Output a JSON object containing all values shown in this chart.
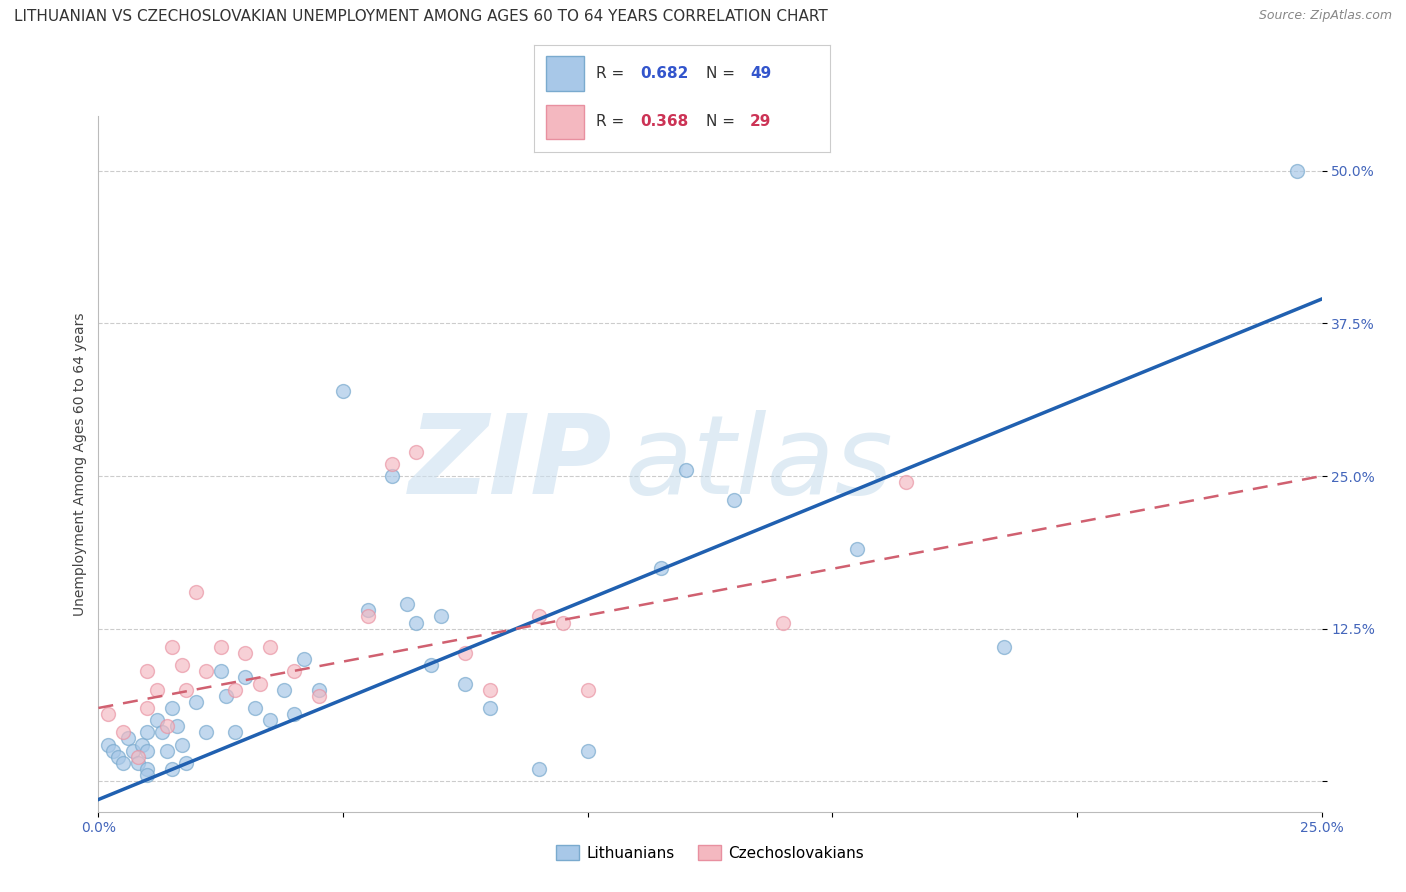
{
  "title": "LITHUANIAN VS CZECHOSLOVAKIAN UNEMPLOYMENT AMONG AGES 60 TO 64 YEARS CORRELATION CHART",
  "source": "Source: ZipAtlas.com",
  "ylabel": "Unemployment Among Ages 60 to 64 years",
  "xlim": [
    0.0,
    0.25
  ],
  "ylim": [
    -0.025,
    0.545
  ],
  "xticks": [
    0.0,
    0.05,
    0.1,
    0.15,
    0.2,
    0.25
  ],
  "xticklabels": [
    "0.0%",
    "",
    "",
    "",
    "",
    "25.0%"
  ],
  "yticks": [
    0.0,
    0.125,
    0.25,
    0.375,
    0.5
  ],
  "yticklabels": [
    "",
    "12.5%",
    "25.0%",
    "37.5%",
    "50.0%"
  ],
  "blue_R": "0.682",
  "blue_N": "49",
  "pink_R": "0.368",
  "pink_N": "29",
  "blue_color": "#a8c8e8",
  "pink_color": "#f4b8c0",
  "blue_edge_color": "#7aaace",
  "pink_edge_color": "#e890a0",
  "blue_line_color": "#2060b0",
  "pink_line_color": "#d06070",
  "grid_color": "#cccccc",
  "legend_labels": [
    "Lithuanians",
    "Czechoslovakians"
  ],
  "blue_scatter_x": [
    0.002,
    0.003,
    0.004,
    0.005,
    0.006,
    0.007,
    0.008,
    0.009,
    0.01,
    0.01,
    0.01,
    0.01,
    0.012,
    0.013,
    0.014,
    0.015,
    0.015,
    0.016,
    0.017,
    0.018,
    0.02,
    0.022,
    0.025,
    0.026,
    0.028,
    0.03,
    0.032,
    0.035,
    0.038,
    0.04,
    0.042,
    0.045,
    0.05,
    0.055,
    0.06,
    0.063,
    0.065,
    0.068,
    0.07,
    0.075,
    0.08,
    0.09,
    0.1,
    0.115,
    0.12,
    0.13,
    0.155,
    0.185,
    0.245
  ],
  "blue_scatter_y": [
    0.03,
    0.025,
    0.02,
    0.015,
    0.035,
    0.025,
    0.015,
    0.03,
    0.04,
    0.01,
    0.025,
    0.005,
    0.05,
    0.04,
    0.025,
    0.06,
    0.01,
    0.045,
    0.03,
    0.015,
    0.065,
    0.04,
    0.09,
    0.07,
    0.04,
    0.085,
    0.06,
    0.05,
    0.075,
    0.055,
    0.1,
    0.075,
    0.32,
    0.14,
    0.25,
    0.145,
    0.13,
    0.095,
    0.135,
    0.08,
    0.06,
    0.01,
    0.025,
    0.175,
    0.255,
    0.23,
    0.19,
    0.11,
    0.5
  ],
  "pink_scatter_x": [
    0.002,
    0.005,
    0.008,
    0.01,
    0.01,
    0.012,
    0.014,
    0.015,
    0.017,
    0.018,
    0.02,
    0.022,
    0.025,
    0.028,
    0.03,
    0.033,
    0.035,
    0.04,
    0.045,
    0.055,
    0.06,
    0.065,
    0.075,
    0.08,
    0.09,
    0.095,
    0.1,
    0.14,
    0.165
  ],
  "pink_scatter_y": [
    0.055,
    0.04,
    0.02,
    0.09,
    0.06,
    0.075,
    0.045,
    0.11,
    0.095,
    0.075,
    0.155,
    0.09,
    0.11,
    0.075,
    0.105,
    0.08,
    0.11,
    0.09,
    0.07,
    0.135,
    0.26,
    0.27,
    0.105,
    0.075,
    0.135,
    0.13,
    0.075,
    0.13,
    0.245
  ],
  "blue_line_x0": 0.0,
  "blue_line_x1": 0.25,
  "blue_line_y0": -0.015,
  "blue_line_y1": 0.395,
  "pink_line_x0": 0.0,
  "pink_line_x1": 0.25,
  "pink_line_y0": 0.06,
  "pink_line_y1": 0.25,
  "title_fontsize": 11,
  "source_fontsize": 9,
  "ylabel_fontsize": 10,
  "tick_fontsize": 10,
  "legend_fontsize": 11,
  "marker_size": 100
}
